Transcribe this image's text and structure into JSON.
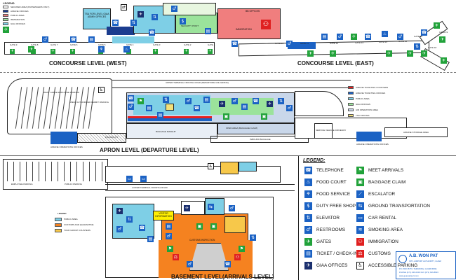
{
  "concourse": {
    "legend_title": "LEGEND",
    "legend_items": [
      {
        "label": "SECURED AREA (PASSENGERS ONLY)",
        "color": "#ffffff"
      },
      {
        "label": "AIRLINE OFFICES",
        "color": "#1b3d8f"
      },
      {
        "label": "PUBLIC AREA",
        "color": "#f07e7e"
      },
      {
        "label": "IMMIGRATION",
        "color": "#9be39b"
      },
      {
        "label": "GIAA OFFICES",
        "color": "#7ecfe6"
      }
    ],
    "west_label": "CONCOURSE LEVEL (WEST)",
    "east_label": "CONCOURSE LEVEL (EAST)",
    "tsa_label": "TSA FOR LEVEL GIAA ADMIN OFFICES",
    "bb_offices": "BB OFFICES",
    "immigration": "IMMIGRATION",
    "security_point": "SECURITY POINT",
    "gates_west": [
      "GATE 1",
      "GATE 2",
      "GATE 3",
      "GATE 4",
      "GATE 5",
      "GATE 6",
      "GATE 7",
      "GATE 8",
      "GATE 9"
    ],
    "gates_east": [
      "GATE 10",
      "GATE 11",
      "GATE 12",
      "GATE 14",
      "GATE 15",
      "GATE 16",
      "GATE 17",
      "GATE 18",
      "GATE 19"
    ]
  },
  "apron": {
    "label": "APRON LEVEL (DEPARTURE LEVEL)",
    "upper_road": "UPPER TERMINAL FRONTAL ROAD (DEPARTURE UNLOADING)",
    "west_employee_parking": "WEST LARGE EMPLOYEE PARKING",
    "west_parking": "WEST AUTHORIZED PERMIT PARKING",
    "airline_ops_west": "AIRLINE OPERATIONS OFFICES",
    "airline_ops_east": "AIRLINE OPERATIONS OFFICES",
    "baggage_makeup": "BAGGAGE MAKEUP",
    "open_area": "OPEN AREA (BAGGAGE CLAIM)",
    "inbound_baggage": "INBOUND BAGGAGE",
    "service_driveway": "SERVICE VEHICLE DRIVEWAY",
    "airline_storage": "AIRLINE STORAGE AREA",
    "mid_facility": "FIS FACILITY",
    "legend_items": [
      {
        "label": "AIRLINE TICKETING COUNTERS",
        "color": "#e82020"
      },
      {
        "label": "AIRLINE TICKETING OFFICES",
        "color": "#1b62c4"
      },
      {
        "label": "PUBLIC AREA",
        "color": "#7ecfe6"
      },
      {
        "label": "GIAA OFFICES",
        "color": "#9be39b"
      },
      {
        "label": "AIR OPERATION AREA",
        "color": "#c9d7ea"
      },
      {
        "label": "TSA OFFICES",
        "color": "#f2e07a"
      }
    ]
  },
  "basement": {
    "label": "BASEMENT LEVEL(ARRIVALS LEVEL)",
    "lower_road": "LOWER TERMINAL FRONTAL ROAD",
    "employee_parking": "EMPLOYEE PARKING",
    "public_parking": "PUBLIC PARKING",
    "visitor_info": "VISITOR INFORMATION",
    "customs": "CUSTOMS INSPECTION",
    "legend_title": "LEGEND",
    "legend_items": [
      {
        "label": "PUBLIC AREA",
        "color": "#7ecfe6"
      },
      {
        "label": "CUSTOMS AND QUARANTINE",
        "color": "#f58220"
      },
      {
        "label": "TOUR GROUP COUNTERS",
        "color": "#f7c84a"
      }
    ]
  },
  "legend": {
    "title": "LEGEND:",
    "col1": [
      {
        "icon": "telephone-icon",
        "glyph": "☎",
        "color": "#1b62c4",
        "label": "TELEPHONE"
      },
      {
        "icon": "food-court-icon",
        "glyph": "♨",
        "color": "#1b62c4",
        "label": "FOOD COURT"
      },
      {
        "icon": "food-service-icon",
        "glyph": "⚘",
        "color": "#1b62c4",
        "label": "FOOD SERVICE"
      },
      {
        "icon": "duty-free-icon",
        "glyph": "$",
        "color": "#1b62c4",
        "label": "DUTY FREE SHOP"
      },
      {
        "icon": "elevator-icon",
        "glyph": "⇅",
        "color": "#1b62c4",
        "label": "ELEVATOR"
      },
      {
        "icon": "restrooms-icon",
        "glyph": "♂",
        "color": "#1b62c4",
        "label": "RESTROOMS"
      },
      {
        "icon": "gates-icon",
        "glyph": "✈",
        "color": "#21a23a",
        "label": "GATES"
      },
      {
        "icon": "ticket-checkin-icon",
        "glyph": "▤",
        "color": "#1b62c4",
        "label": "TICKET / CHECK-IN"
      },
      {
        "icon": "giaa-offices-icon",
        "glyph": "✈",
        "color": "#1a2f6e",
        "label": "GIAA OFFICES"
      }
    ],
    "col2": [
      {
        "icon": "meet-arrivals-icon",
        "glyph": "⚑",
        "color": "#21a23a",
        "label": "MEET ARRIVALS"
      },
      {
        "icon": "baggage-claim-icon",
        "glyph": "▣",
        "color": "#21a23a",
        "label": "BAGGAGE CLAIM"
      },
      {
        "icon": "escalator-icon",
        "glyph": "⟋",
        "color": "#1b62c4",
        "label": "ESCALATOR"
      },
      {
        "icon": "ground-transport-icon",
        "glyph": "⇆",
        "color": "#1b62c4",
        "label": "GROUND TRANSPORTATION"
      },
      {
        "icon": "car-rental-icon",
        "glyph": "▭",
        "color": "#1b62c4",
        "label": "CAR RENTAL"
      },
      {
        "icon": "smoking-area-icon",
        "glyph": "≋",
        "color": "#1b62c4",
        "label": "SMOKING AREA"
      },
      {
        "icon": "immigration-icon",
        "glyph": "⚇",
        "color": "#e02020",
        "label": "IMMIGRATION"
      },
      {
        "icon": "customs-icon",
        "glyph": "⚖",
        "color": "#e02020",
        "label": "CUSTOMS"
      },
      {
        "icon": "accessible-parking-icon",
        "glyph": "♿",
        "color": "#ffffff",
        "label": "ACCESSIBLE PARKING"
      }
    ]
  },
  "logo": {
    "name": "A.B. WON PAT",
    "line1": "INT'L AIRPORT AUTHORITY, GUAM",
    "line2": "P.O. BOX 8770, TAMUNING, GUAM 96931",
    "line3": "PHONE (671) 646-0300 FAX (671) 646-8823",
    "line4": "www.guamairport.com"
  }
}
